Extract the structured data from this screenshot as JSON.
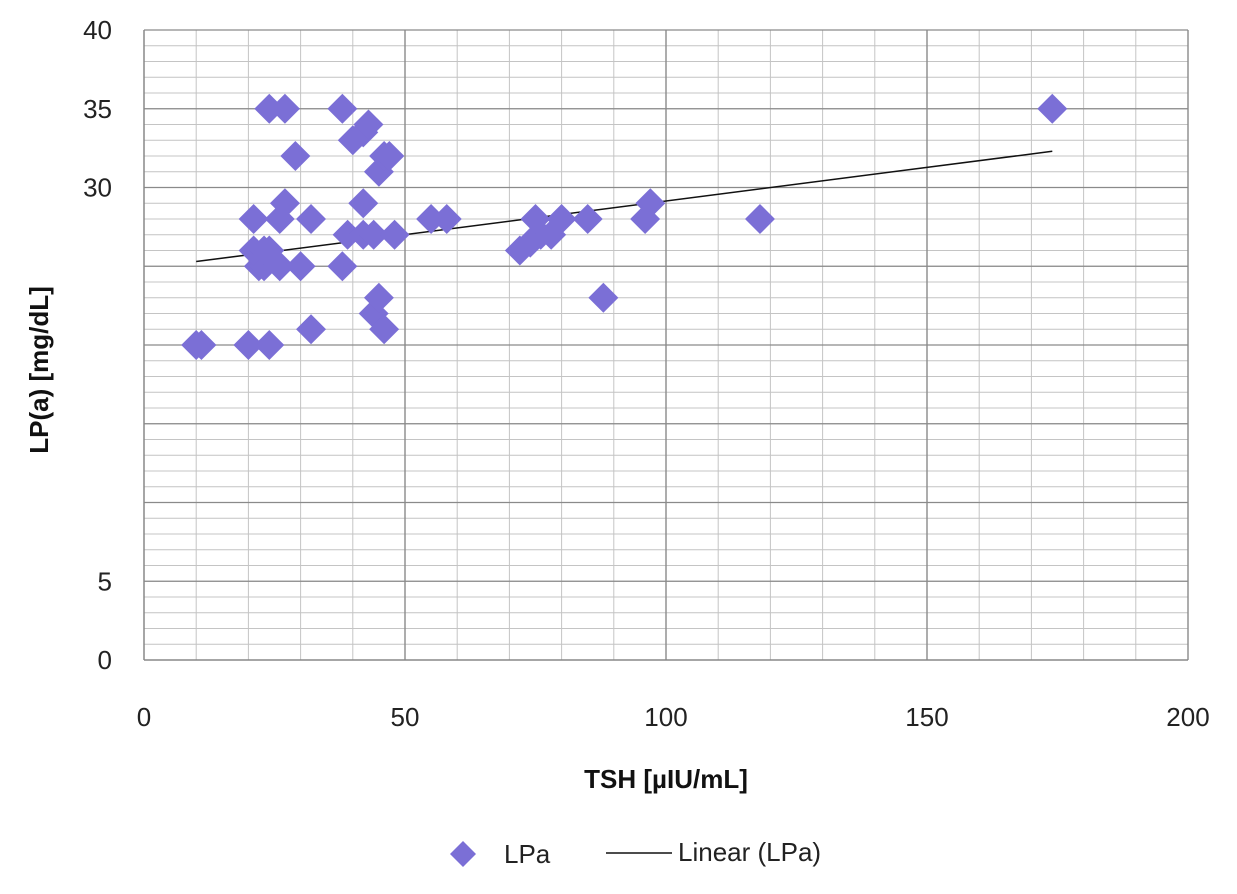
{
  "chart_data": {
    "type": "scatter",
    "xlabel": "TSH [µIU/mL]",
    "ylabel": "LP(a) [mg/dL]",
    "xlim": [
      0,
      200
    ],
    "ylim": [
      0,
      40
    ],
    "x_ticks": [
      0,
      50,
      100,
      150,
      200
    ],
    "y_ticks": [
      0,
      5,
      10,
      15,
      20,
      25,
      30,
      35,
      40
    ],
    "y_tick_labels": [
      "0",
      "5",
      "",
      "",
      "",
      "",
      "30",
      "35",
      "40"
    ],
    "x_minor_step": 10,
    "y_minor_step": 1,
    "grid": true,
    "legend_position": "bottom",
    "series": [
      {
        "name": "LPa",
        "marker": "diamond",
        "color": "#7b6fd6",
        "points": [
          [
            10,
            20
          ],
          [
            11,
            20
          ],
          [
            20,
            20
          ],
          [
            24,
            20
          ],
          [
            32,
            21
          ],
          [
            44,
            22
          ],
          [
            46,
            21
          ],
          [
            22,
            25
          ],
          [
            23,
            25
          ],
          [
            26,
            25
          ],
          [
            30,
            25
          ],
          [
            38,
            25
          ],
          [
            21,
            26
          ],
          [
            23,
            26
          ],
          [
            24,
            26
          ],
          [
            72,
            26
          ],
          [
            74,
            26.5
          ],
          [
            39,
            27
          ],
          [
            42,
            27
          ],
          [
            44,
            27
          ],
          [
            48,
            27
          ],
          [
            76,
            27
          ],
          [
            78,
            27
          ],
          [
            21,
            28
          ],
          [
            26,
            28
          ],
          [
            32,
            28
          ],
          [
            55,
            28
          ],
          [
            58,
            28
          ],
          [
            75,
            28
          ],
          [
            80,
            28
          ],
          [
            85,
            28
          ],
          [
            96,
            28
          ],
          [
            118,
            28
          ],
          [
            27,
            29
          ],
          [
            42,
            29
          ],
          [
            97,
            29
          ],
          [
            45,
            31
          ],
          [
            46,
            32
          ],
          [
            29,
            32
          ],
          [
            47,
            32
          ],
          [
            40,
            33
          ],
          [
            42,
            33.5
          ],
          [
            43,
            34
          ],
          [
            24,
            35
          ],
          [
            27,
            35
          ],
          [
            38,
            35
          ],
          [
            174,
            35
          ],
          [
            45,
            23
          ],
          [
            88,
            23
          ]
        ]
      },
      {
        "name": "Linear (LPa)",
        "type": "line",
        "color": "#111111",
        "points": [
          [
            10,
            25.3
          ],
          [
            174,
            32.3
          ]
        ]
      }
    ]
  }
}
